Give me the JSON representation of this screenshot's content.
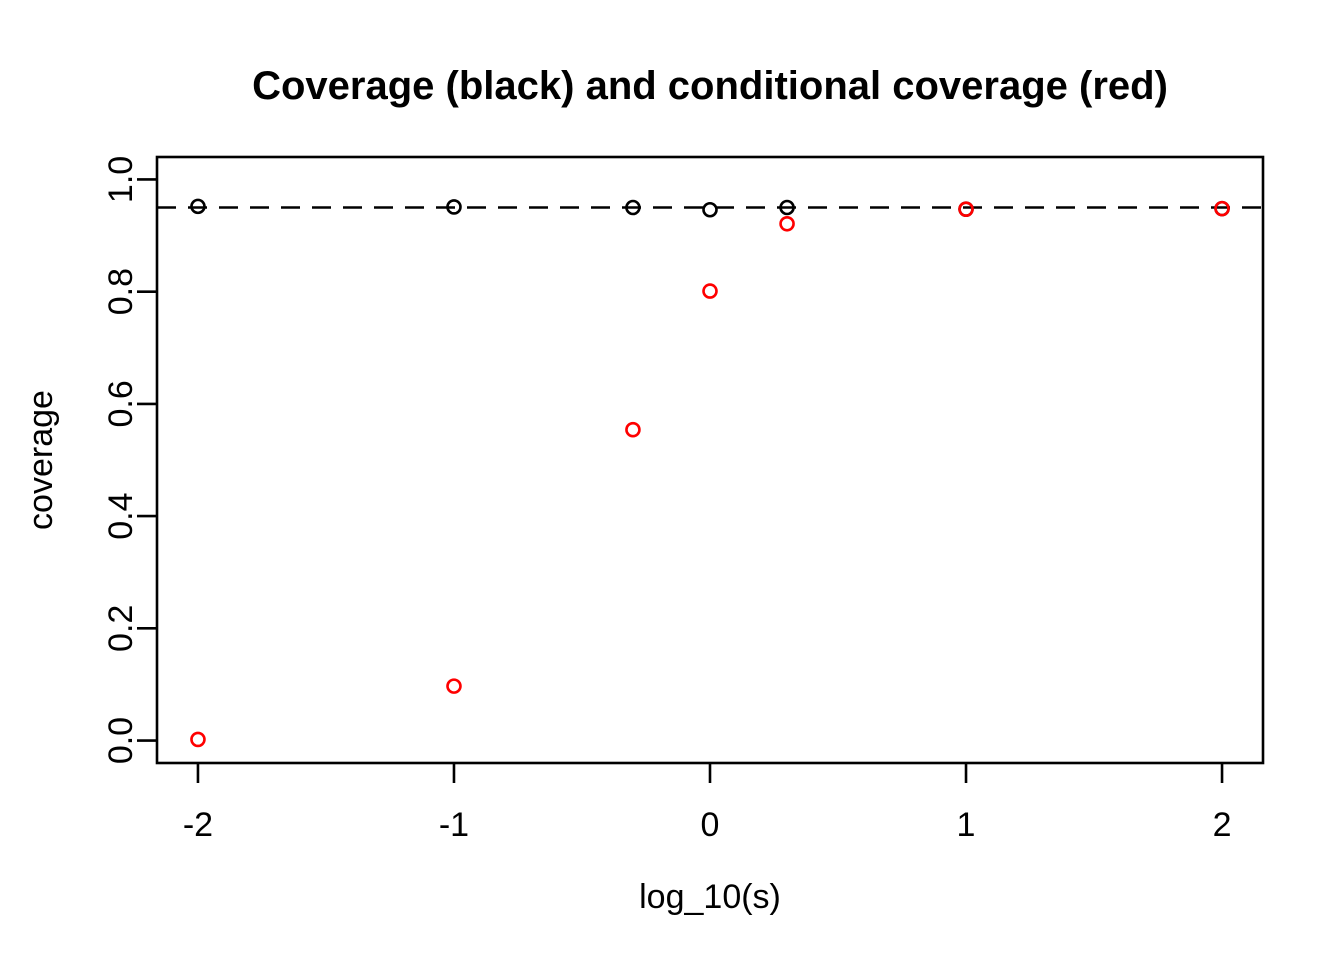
{
  "figure": {
    "background": "#ffffff"
  },
  "chart_data": {
    "type": "scatter",
    "title": "Coverage (black) and conditional coverage (red)",
    "xlabel": "log_10(s)",
    "ylabel": "coverage",
    "xlim": [
      -2.16,
      2.16
    ],
    "ylim": [
      -0.04,
      1.04
    ],
    "grid": false,
    "legend_position": "none",
    "x_ticks": [
      {
        "value": -2,
        "label": "-2"
      },
      {
        "value": -1,
        "label": "-1"
      },
      {
        "value": 0,
        "label": "0"
      },
      {
        "value": 1,
        "label": "1"
      },
      {
        "value": 2,
        "label": "2"
      }
    ],
    "y_ticks": [
      {
        "value": 0.0,
        "label": "0.0"
      },
      {
        "value": 0.2,
        "label": "0.2"
      },
      {
        "value": 0.4,
        "label": "0.4"
      },
      {
        "value": 0.6,
        "label": "0.6"
      },
      {
        "value": 0.8,
        "label": "0.8"
      },
      {
        "value": 1.0,
        "label": "1.0"
      }
    ],
    "reference_line": {
      "axis": "y",
      "value": 0.95,
      "style": "dashed",
      "color": "#000000"
    },
    "x": [
      -2,
      -1,
      -0.301,
      0,
      0.301,
      1,
      2
    ],
    "series": [
      {
        "name": "coverage (black)",
        "color": "#000000",
        "marker": "open-circle",
        "values": [
          0.952,
          0.951,
          0.95,
          0.946,
          0.95,
          0.947,
          0.948
        ]
      },
      {
        "name": "conditional coverage (red)",
        "color": "#ff0000",
        "marker": "open-circle",
        "values": [
          0.002,
          0.097,
          0.554,
          0.801,
          0.921,
          0.947,
          0.948
        ]
      }
    ]
  }
}
